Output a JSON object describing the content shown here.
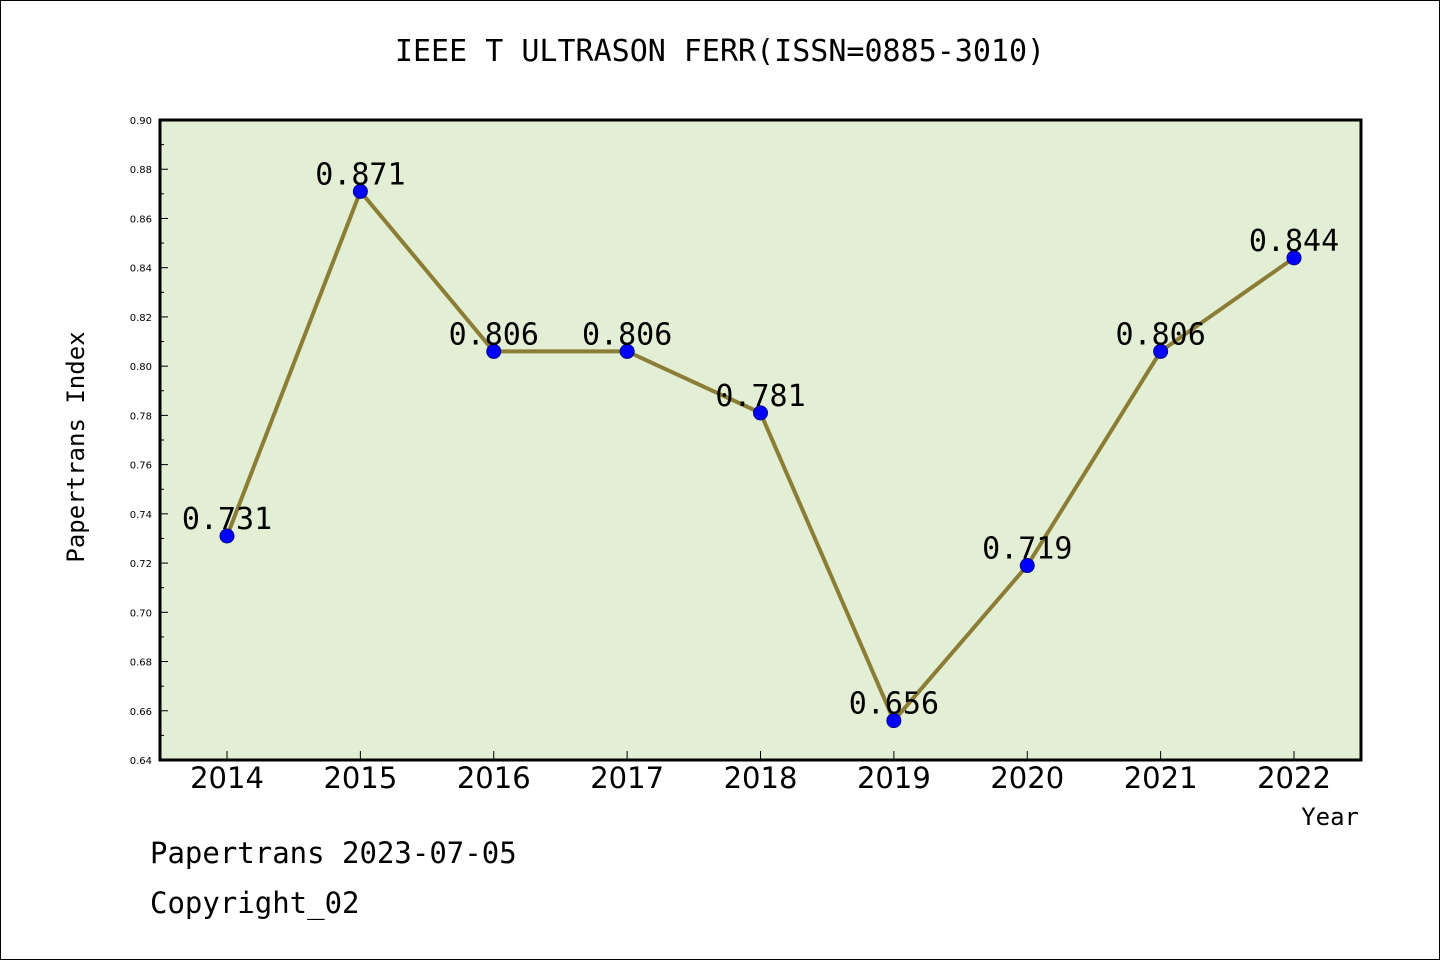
{
  "header": {
    "title": "IEEE T ULTRASON FERR(ISSN=0885-3010)"
  },
  "footer": {
    "line1": "Papertrans 2023-07-05",
    "line2": "Copyright_02"
  },
  "chart_data": {
    "type": "line",
    "title": "IEEE T ULTRASON FERR(ISSN=0885-3010)",
    "xlabel": "Year",
    "ylabel": "Papertrans Index",
    "categories": [
      "2014",
      "2015",
      "2016",
      "2017",
      "2018",
      "2019",
      "2020",
      "2021",
      "2022"
    ],
    "values": [
      0.731,
      0.871,
      0.806,
      0.806,
      0.781,
      0.656,
      0.719,
      0.806,
      0.844
    ],
    "data_labels": [
      "0.731",
      "0.871",
      "0.806",
      "0.806",
      "0.781",
      "0.656",
      "0.719",
      "0.806",
      "0.844"
    ],
    "ylim": [
      0.64,
      0.9
    ],
    "yticks": [
      "0.64",
      "0.66",
      "0.68",
      "0.70",
      "0.72",
      "0.74",
      "0.76",
      "0.78",
      "0.80",
      "0.82",
      "0.84",
      "0.86",
      "0.88",
      "0.90"
    ],
    "grid": false,
    "colors": {
      "plot_background": "#e2efd5",
      "line": "#8b7d35",
      "marker": "#0000ff"
    }
  }
}
